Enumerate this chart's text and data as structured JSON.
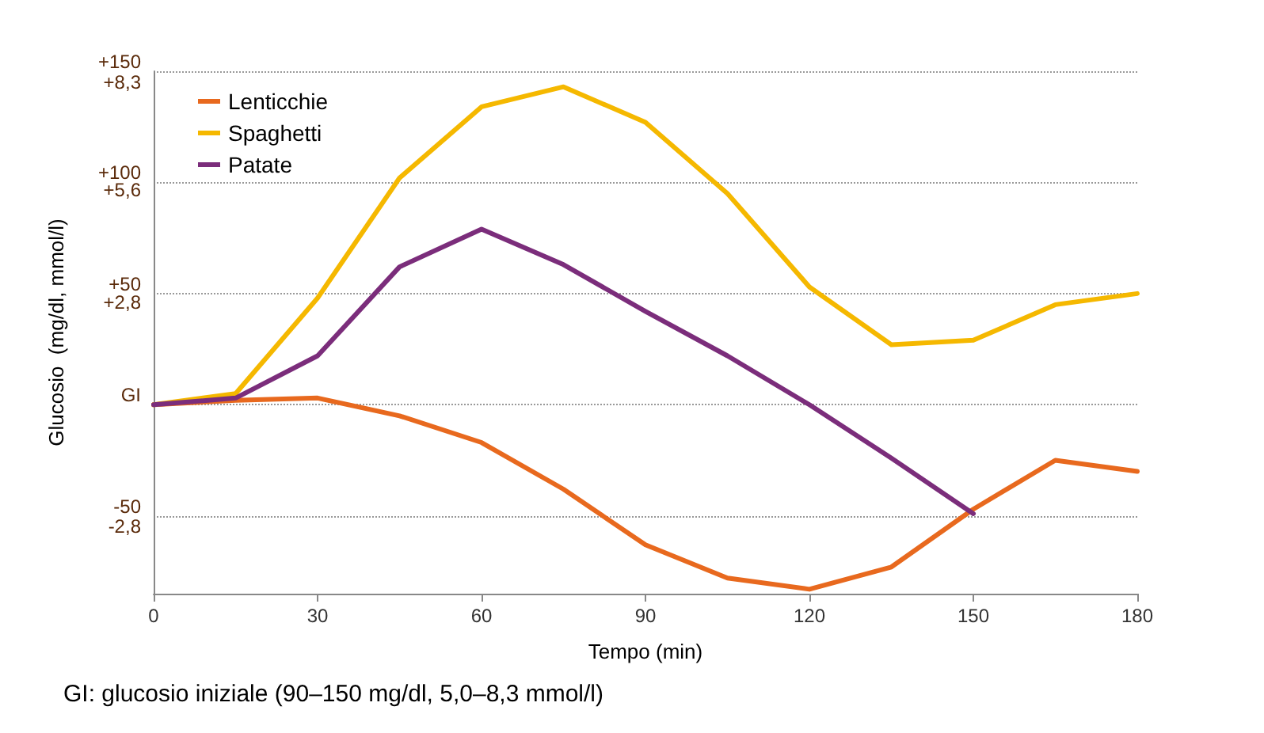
{
  "chart_data": {
    "type": "line",
    "xlabel": "Tempo (min)",
    "ylabel": "Glucosio  (mg/dl, mmol/l)",
    "x": [
      0,
      15,
      30,
      45,
      60,
      75,
      90,
      105,
      120,
      135,
      150,
      165,
      180
    ],
    "xlim": [
      0,
      180
    ],
    "xticks": [
      0,
      30,
      60,
      90,
      120,
      150,
      180
    ],
    "ylim": [
      -85,
      150
    ],
    "yticks": [
      {
        "value": -50,
        "label": "-50"
      },
      {
        "value": 0,
        "label": "GI"
      },
      {
        "value": 50,
        "label": "+50"
      },
      {
        "value": 100,
        "label": "+100"
      },
      {
        "value": 150,
        "label": "+150"
      }
    ],
    "y2lim": [
      -4.72,
      8.33
    ],
    "y2ticks": [
      {
        "value": -2.8,
        "label": "-2,8"
      },
      {
        "value": 2.8,
        "label": "+2,8"
      },
      {
        "value": 5.6,
        "label": "+5,6"
      },
      {
        "value": 8.3,
        "label": "+8,3"
      }
    ],
    "grid": "y",
    "legend": "top left",
    "marker": "none",
    "line_style": "solid",
    "series": [
      {
        "name": "Lenticchie",
        "color": "#e8691e",
        "values": [
          0,
          2,
          3,
          -5,
          -17,
          -38,
          -63,
          -78,
          -83,
          -73,
          -47,
          -25,
          -30
        ]
      },
      {
        "name": "Spaghetti",
        "color": "#f5b800",
        "values": [
          0,
          5,
          48,
          102,
          134,
          143,
          127,
          95,
          53,
          27,
          29,
          45,
          50
        ]
      },
      {
        "name": "Patate",
        "color": "#7b2d7b",
        "values": [
          0,
          3,
          22,
          62,
          79,
          63,
          42,
          22,
          0,
          -24,
          -49,
          null,
          null
        ]
      }
    ],
    "annotations": [
      "GI: glucosio iniziale (90–150 mg/dl, 5,0–8,3 mmol/l)"
    ]
  }
}
